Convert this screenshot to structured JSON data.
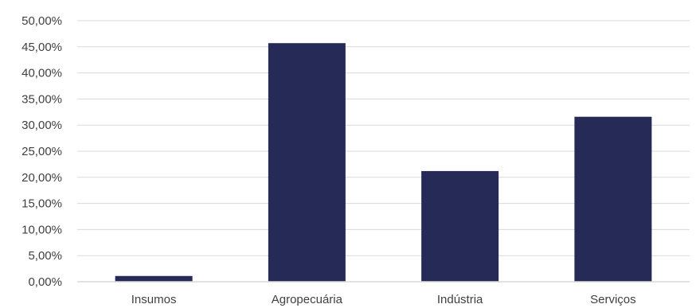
{
  "chart_data": {
    "type": "bar",
    "categories": [
      "Insumos",
      "Agropecuária",
      "Indústria",
      "Serviços"
    ],
    "values": [
      1.1,
      45.7,
      21.2,
      31.6
    ],
    "ylim": [
      0,
      50
    ],
    "yticks": [
      0,
      5,
      10,
      15,
      20,
      25,
      30,
      35,
      40,
      45,
      50
    ],
    "ytick_labels": [
      "0,00%",
      "5,00%",
      "10,00%",
      "15,00%",
      "20,00%",
      "25,00%",
      "30,00%",
      "35,00%",
      "40,00%",
      "45,00%",
      "50,00%"
    ],
    "grid": true,
    "legend": "none",
    "bar_color": "#262a56",
    "grid_color": "#d9d9d9",
    "title": "",
    "xlabel": "",
    "ylabel": ""
  }
}
